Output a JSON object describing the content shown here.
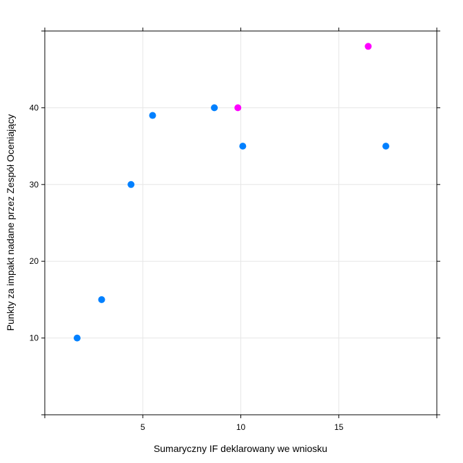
{
  "chart_data": {
    "type": "scatter",
    "xlabel": "Sumaryczny IF deklarowany we wniosku",
    "ylabel": "Punkty za impakt nadane przez Zespół Oceniający",
    "xlim": [
      0,
      20
    ],
    "ylim": [
      0,
      50
    ],
    "x_ticks": [
      5,
      10,
      15
    ],
    "y_ticks": [
      10,
      20,
      30,
      40
    ],
    "grid": true,
    "points": [
      {
        "x": 1.65,
        "y": 10,
        "color": "#0080ff"
      },
      {
        "x": 2.9,
        "y": 15,
        "color": "#0080ff"
      },
      {
        "x": 4.4,
        "y": 30,
        "color": "#0080ff"
      },
      {
        "x": 5.5,
        "y": 39,
        "color": "#0080ff"
      },
      {
        "x": 8.65,
        "y": 40,
        "color": "#0080ff"
      },
      {
        "x": 9.85,
        "y": 40,
        "color": "#ff00ff"
      },
      {
        "x": 10.1,
        "y": 35,
        "color": "#0080ff"
      },
      {
        "x": 16.5,
        "y": 48,
        "color": "#ff00ff"
      },
      {
        "x": 17.4,
        "y": 35,
        "color": "#0080ff"
      }
    ]
  }
}
